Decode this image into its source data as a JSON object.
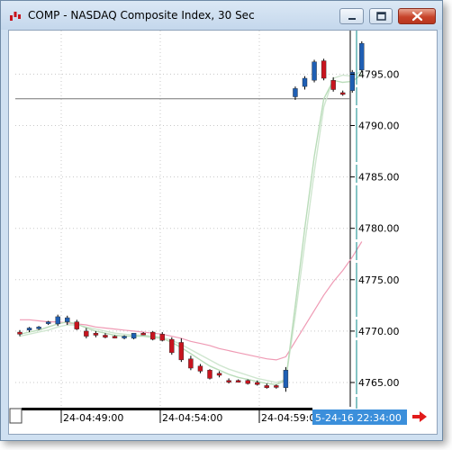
{
  "window": {
    "title": "COMP - NASDAQ Composite Index, 30 Sec",
    "icon": "candlestick-app-icon",
    "buttons": [
      "minimize",
      "maximize",
      "close"
    ]
  },
  "colors": {
    "up_candle": "#1f5fb4",
    "down_candle": "#c8141e",
    "wick": "#000000",
    "ma_fast": "#b9dcb9",
    "ma_medium": "#cfe6cf",
    "ma_slow": "#ef9ab4",
    "crosshair_vertical": "#0a8a8a",
    "horizontal_line": "#777777",
    "date_box": "#3b8fdb",
    "scroll_arrow": "#e21b1b"
  },
  "chart_data": {
    "type": "candlestick",
    "title": "",
    "xlabel": "",
    "ylabel": "",
    "ylim": [
      4763.3,
      4799.5
    ],
    "y_ticks": [
      "4765.00",
      "4770.00",
      "4775.00",
      "4780.00",
      "4785.00",
      "4790.00",
      "4795.00"
    ],
    "x_ticks": [
      "24-04:49:00",
      "24-04:54:00",
      "24-04:59:00"
    ],
    "crosshair_date_label": "5-24-16 22:34:00",
    "horizontal_line_value": 4792.6,
    "grid": true,
    "candles": [
      {
        "open": 4769.9,
        "high": 4770.1,
        "low": 4769.5,
        "close": 4769.7
      },
      {
        "open": 4770.1,
        "high": 4770.4,
        "low": 4769.9,
        "close": 4770.3
      },
      {
        "open": 4770.3,
        "high": 4770.5,
        "low": 4770.1,
        "close": 4770.4
      },
      {
        "open": 4770.8,
        "high": 4771.0,
        "low": 4770.6,
        "close": 4770.9
      },
      {
        "open": 4770.7,
        "high": 4771.6,
        "low": 4770.5,
        "close": 4771.4
      },
      {
        "open": 4770.9,
        "high": 4771.5,
        "low": 4770.6,
        "close": 4771.3
      },
      {
        "open": 4770.9,
        "high": 4771.1,
        "low": 4770.1,
        "close": 4770.2
      },
      {
        "open": 4770.0,
        "high": 4770.3,
        "low": 4769.3,
        "close": 4769.5
      },
      {
        "open": 4769.8,
        "high": 4770.0,
        "low": 4769.4,
        "close": 4769.6
      },
      {
        "open": 4769.6,
        "high": 4769.8,
        "low": 4769.3,
        "close": 4769.4
      },
      {
        "open": 4769.5,
        "high": 4769.6,
        "low": 4769.3,
        "close": 4769.4
      },
      {
        "open": 4769.4,
        "high": 4769.6,
        "low": 4769.2,
        "close": 4769.5
      },
      {
        "open": 4769.3,
        "high": 4769.8,
        "low": 4769.2,
        "close": 4769.8
      },
      {
        "open": 4769.8,
        "high": 4769.9,
        "low": 4769.6,
        "close": 4769.7
      },
      {
        "open": 4769.9,
        "high": 4770.0,
        "low": 4769.1,
        "close": 4769.2
      },
      {
        "open": 4769.7,
        "high": 4769.9,
        "low": 4769.0,
        "close": 4769.1
      },
      {
        "open": 4769.2,
        "high": 4769.4,
        "low": 4767.7,
        "close": 4767.9
      },
      {
        "open": 4768.9,
        "high": 4769.3,
        "low": 4767.0,
        "close": 4767.2
      },
      {
        "open": 4767.3,
        "high": 4767.6,
        "low": 4766.2,
        "close": 4766.4
      },
      {
        "open": 4766.6,
        "high": 4766.8,
        "low": 4765.9,
        "close": 4766.1
      },
      {
        "open": 4766.2,
        "high": 4766.3,
        "low": 4765.3,
        "close": 4765.4
      },
      {
        "open": 4765.9,
        "high": 4766.1,
        "low": 4765.5,
        "close": 4765.7
      },
      {
        "open": 4765.2,
        "high": 4765.4,
        "low": 4764.9,
        "close": 4765.1
      },
      {
        "open": 4765.2,
        "high": 4765.3,
        "low": 4765.0,
        "close": 4765.1
      },
      {
        "open": 4765.2,
        "high": 4765.3,
        "low": 4764.8,
        "close": 4764.9
      },
      {
        "open": 4765.0,
        "high": 4765.2,
        "low": 4764.7,
        "close": 4764.8
      },
      {
        "open": 4764.7,
        "high": 4764.9,
        "low": 4764.4,
        "close": 4764.5
      },
      {
        "open": 4764.7,
        "high": 4764.8,
        "low": 4764.4,
        "close": 4764.6
      },
      {
        "open": 4764.5,
        "high": 4766.5,
        "low": 4764.1,
        "close": 4766.2
      },
      {
        "open": 4792.8,
        "high": 4793.8,
        "low": 4792.5,
        "close": 4793.6
      },
      {
        "open": 4793.8,
        "high": 4794.8,
        "low": 4793.5,
        "close": 4794.6
      },
      {
        "open": 4794.4,
        "high": 4796.4,
        "low": 4794.2,
        "close": 4796.2
      },
      {
        "open": 4796.3,
        "high": 4796.5,
        "low": 4794.4,
        "close": 4794.6
      },
      {
        "open": 4794.4,
        "high": 4794.7,
        "low": 4793.3,
        "close": 4793.5
      },
      {
        "open": 4793.2,
        "high": 4793.4,
        "low": 4792.9,
        "close": 4793.1
      },
      {
        "open": 4793.4,
        "high": 4795.4,
        "low": 4793.2,
        "close": 4795.2
      },
      {
        "open": 4795.4,
        "high": 4798.2,
        "low": 4795.2,
        "close": 4798.0
      }
    ],
    "ma_fast": [
      4769.7,
      4769.9,
      4770.1,
      4770.4,
      4770.7,
      4770.9,
      4770.7,
      4770.3,
      4770.0,
      4769.8,
      4769.6,
      4769.5,
      4769.5,
      4769.5,
      4769.4,
      4769.3,
      4768.9,
      4768.4,
      4767.8,
      4767.2,
      4766.6,
      4766.2,
      4765.8,
      4765.5,
      4765.3,
      4765.1,
      4764.9,
      4764.8,
      4765.2,
      4772.5,
      4780.0,
      4787.0,
      4792.6,
      4794.4,
      4794.2,
      4794.3,
      4795.0
    ],
    "ma_medium": [
      4769.5,
      4769.7,
      4769.9,
      4770.1,
      4770.4,
      4770.6,
      4770.6,
      4770.4,
      4770.2,
      4770.0,
      4769.8,
      4769.7,
      4769.6,
      4769.6,
      4769.5,
      4769.4,
      4769.1,
      4768.7,
      4768.2,
      4767.7,
      4767.2,
      4766.7,
      4766.3,
      4766.0,
      4765.7,
      4765.4,
      4765.2,
      4765.0,
      4765.3,
      4771.5,
      4778.5,
      4785.5,
      4791.8,
      4794.6,
      4794.9,
      4794.8,
      4795.3
    ],
    "ma_slow": [
      4771.1,
      4771.1,
      4771.0,
      4770.9,
      4770.9,
      4770.8,
      4770.7,
      4770.6,
      4770.4,
      4770.3,
      4770.2,
      4770.1,
      4770.0,
      4769.9,
      4769.8,
      4769.7,
      4769.5,
      4769.3,
      4769.0,
      4768.8,
      4768.6,
      4768.3,
      4768.1,
      4767.9,
      4767.7,
      4767.5,
      4767.3,
      4767.2,
      4767.5,
      4769.0,
      4770.5,
      4772.0,
      4773.5,
      4774.8,
      4775.9,
      4777.2,
      4778.7
    ]
  }
}
